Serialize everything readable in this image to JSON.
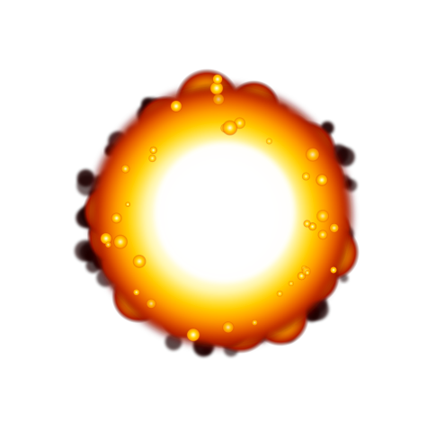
{
  "image": {
    "subject": "explosion-sprite",
    "background_color": "#ffffff",
    "palette": {
      "core": "#ffffff",
      "inner_glow": "#fff7b0",
      "yellow": "#ffd400",
      "orange": "#ff9a00",
      "deep_orange": "#e65a00",
      "red": "#b41c00",
      "dark_edge": "#4a0700",
      "smoke": "#1a0000"
    }
  }
}
